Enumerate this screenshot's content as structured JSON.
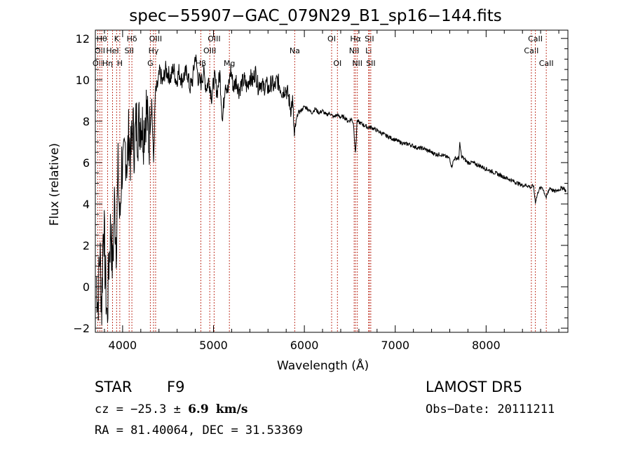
{
  "chart_data": {
    "type": "line",
    "title": "spec−55907−GAC_079N29_B1_sp16−144.fits",
    "xlabel": "Wavelength (Å)",
    "ylabel": "Flux (relative)",
    "xlim": [
      3700,
      8900
    ],
    "ylim": [
      -2.2,
      12.4
    ],
    "x_ticks": [
      4000,
      5000,
      6000,
      7000,
      8000
    ],
    "y_ticks": [
      -2,
      0,
      2,
      4,
      6,
      8,
      10,
      12
    ],
    "x_tick_labels": [
      "4000",
      "5000",
      "6000",
      "7000",
      "8000"
    ],
    "y_tick_labels": [
      "−2",
      "0",
      "2",
      "4",
      "6",
      "8",
      "10",
      "12"
    ],
    "grid": false,
    "line_color": "#000000",
    "marker_color": "#c0392b",
    "series": [
      {
        "x": [
          3710,
          3730,
          3750,
          3770,
          3790,
          3810,
          3830,
          3850,
          3870,
          3890,
          3910,
          3930,
          3950,
          3970,
          3990,
          4010,
          4030,
          4050,
          4070,
          4090,
          4110,
          4130,
          4150,
          4170,
          4200,
          4230,
          4260,
          4290,
          4320,
          4340,
          4360,
          4380,
          4410,
          4440,
          4470,
          4500,
          4530,
          4560,
          4590,
          4620,
          4650,
          4680,
          4710,
          4740,
          4770,
          4800,
          4830,
          4860,
          4890,
          4920,
          4950,
          4980,
          5010,
          5040,
          5070,
          5100,
          5130,
          5160,
          5190,
          5220,
          5250,
          5280,
          5310,
          5340,
          5370,
          5400,
          5430,
          5460,
          5490,
          5520,
          5550,
          5580,
          5610,
          5640,
          5670,
          5700,
          5730,
          5760,
          5790,
          5820,
          5850,
          5870,
          5890,
          5910,
          5930,
          5960,
          6000,
          6040,
          6080,
          6120,
          6160,
          6200,
          6240,
          6280,
          6320,
          6360,
          6400,
          6440,
          6480,
          6520,
          6540,
          6563,
          6580,
          6620,
          6660,
          6700,
          6740,
          6780,
          6820,
          6860,
          6900,
          6950,
          7000,
          7050,
          7100,
          7150,
          7200,
          7250,
          7300,
          7350,
          7400,
          7450,
          7500,
          7550,
          7600,
          7620,
          7650,
          7700,
          7710,
          7730,
          7800,
          7850,
          7900,
          7950,
          8000,
          8050,
          8100,
          8150,
          8200,
          8250,
          8300,
          8350,
          8400,
          8450,
          8498,
          8520,
          8542,
          8580,
          8620,
          8662,
          8700,
          8750,
          8800,
          8850,
          8880
        ],
        "y": [
          0.5,
          -0.8,
          1.8,
          -1.0,
          3.5,
          0.5,
          -1.6,
          1.2,
          3.0,
          0.8,
          4.0,
          2.2,
          5.5,
          3.0,
          6.0,
          5.5,
          6.8,
          6.0,
          7.4,
          6.2,
          7.8,
          6.8,
          7.9,
          7.6,
          8.2,
          7.5,
          8.7,
          7.0,
          9.0,
          6.0,
          9.3,
          9.6,
          10.4,
          9.8,
          10.5,
          10.3,
          10.1,
          10.6,
          9.9,
          10.4,
          10.0,
          10.2,
          10.4,
          9.6,
          10.0,
          11.2,
          10.1,
          9.8,
          10.4,
          9.6,
          10.0,
          9.2,
          10.1,
          9.4,
          10.3,
          8.0,
          10.0,
          9.4,
          10.5,
          9.6,
          10.0,
          9.5,
          9.8,
          10.0,
          9.6,
          10.2,
          9.9,
          10.4,
          9.7,
          9.9,
          9.6,
          9.8,
          9.5,
          9.9,
          9.6,
          10.0,
          9.7,
          9.4,
          9.6,
          9.3,
          8.6,
          9.0,
          7.2,
          8.0,
          8.4,
          8.5,
          8.7,
          8.6,
          8.4,
          8.6,
          8.4,
          8.5,
          8.3,
          8.4,
          8.2,
          8.3,
          8.2,
          8.2,
          8.0,
          8.1,
          7.9,
          6.4,
          8.0,
          7.9,
          7.8,
          7.7,
          7.7,
          7.6,
          7.5,
          7.4,
          7.3,
          7.2,
          7.1,
          7.0,
          6.9,
          6.9,
          6.8,
          6.7,
          6.7,
          6.6,
          6.5,
          6.4,
          6.4,
          6.3,
          6.2,
          5.8,
          6.2,
          6.2,
          6.9,
          6.3,
          6.0,
          6.0,
          5.9,
          5.8,
          5.7,
          5.6,
          5.5,
          5.4,
          5.3,
          5.2,
          5.1,
          5.0,
          4.9,
          4.9,
          4.8,
          4.9,
          4.1,
          4.7,
          4.8,
          4.3,
          4.8,
          4.6,
          4.7,
          4.8,
          4.6
        ]
      }
    ],
    "line_markers": [
      {
        "wavelength": 3727,
        "label": "OII",
        "row": 2
      },
      {
        "wavelength": 3750,
        "label": "OII",
        "row": 1
      },
      {
        "wavelength": 3771,
        "label": "Hθ",
        "row": 0
      },
      {
        "wavelength": 3835,
        "label": "Hη",
        "row": 2
      },
      {
        "wavelength": 3889,
        "label": "HeI",
        "row": 1
      },
      {
        "wavelength": 3934,
        "label": "K",
        "row": 0
      },
      {
        "wavelength": 3969,
        "label": "H",
        "row": 2
      },
      {
        "wavelength": 4072,
        "label": "SII",
        "row": 1
      },
      {
        "wavelength": 4102,
        "label": "Hδ",
        "row": 0
      },
      {
        "wavelength": 4305,
        "label": "G",
        "row": 2
      },
      {
        "wavelength": 4340,
        "label": "Hγ",
        "row": 1
      },
      {
        "wavelength": 4363,
        "label": "OIII",
        "row": 0
      },
      {
        "wavelength": 4861,
        "label": "Hβ",
        "row": 2
      },
      {
        "wavelength": 4959,
        "label": "OIII",
        "row": 1
      },
      {
        "wavelength": 5007,
        "label": "OIII",
        "row": 0
      },
      {
        "wavelength": 5175,
        "label": "Mg",
        "row": 2
      },
      {
        "wavelength": 5894,
        "label": "Na",
        "row": 1
      },
      {
        "wavelength": 6300,
        "label": "OI",
        "row": 0
      },
      {
        "wavelength": 6364,
        "label": "OI",
        "row": 2
      },
      {
        "wavelength": 6548,
        "label": "NII",
        "row": 1
      },
      {
        "wavelength": 6563,
        "label": "Hα",
        "row": 0
      },
      {
        "wavelength": 6583,
        "label": "NII",
        "row": 2
      },
      {
        "wavelength": 6707,
        "label": "Li",
        "row": 1
      },
      {
        "wavelength": 6716,
        "label": "SII",
        "row": 0
      },
      {
        "wavelength": 6731,
        "label": "SII",
        "row": 2
      },
      {
        "wavelength": 8498,
        "label": "CaII",
        "row": 1
      },
      {
        "wavelength": 8542,
        "label": "CaII",
        "row": 0
      },
      {
        "wavelength": 8662,
        "label": "CaII",
        "row": 2
      }
    ]
  },
  "info": {
    "object_class": "STAR",
    "subclass": "F9",
    "survey": "LAMOST DR5",
    "cz_label": "cz = −25.3 ±",
    "cz_error": "6.9",
    "cz_unit": "km/s",
    "obs_date": "Obs−Date: 20111211",
    "radec": "RA =  81.40064, DEC =  31.53369"
  }
}
